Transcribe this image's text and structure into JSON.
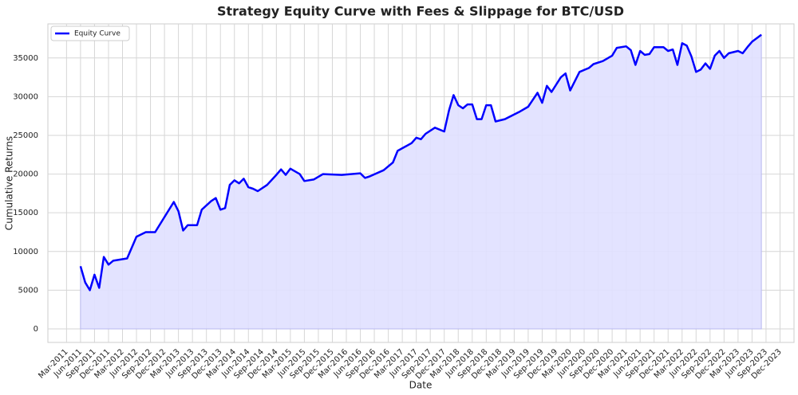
{
  "chart_data": {
    "type": "line",
    "title": "Strategy Equity Curve with Fees & Slippage for BTC/USD",
    "x_label": "Date",
    "y_label": "Cumulative Returns",
    "x": [
      "2011-06",
      "2011-07",
      "2011-08",
      "2011-09",
      "2011-10",
      "2011-11",
      "2011-12",
      "2012-01",
      "2012-04",
      "2012-06",
      "2012-08",
      "2012-10",
      "2013-02",
      "2013-03",
      "2013-04",
      "2013-05",
      "2013-07",
      "2013-08",
      "2013-10",
      "2013-11",
      "2013-12",
      "2014-01",
      "2014-02",
      "2014-03",
      "2014-04",
      "2014-05",
      "2014-06",
      "2014-07",
      "2014-08",
      "2014-10",
      "2014-12",
      "2015-01",
      "2015-02",
      "2015-03",
      "2015-05",
      "2015-06",
      "2015-08",
      "2015-10",
      "2016-02",
      "2016-04",
      "2016-06",
      "2016-07",
      "2016-08",
      "2016-11",
      "2017-01",
      "2017-02",
      "2017-05",
      "2017-06",
      "2017-07",
      "2017-08",
      "2017-10",
      "2017-12",
      "2018-01",
      "2018-02",
      "2018-03",
      "2018-04",
      "2018-05",
      "2018-06",
      "2018-07",
      "2018-08",
      "2018-09",
      "2018-10",
      "2018-11",
      "2019-01",
      "2019-04",
      "2019-06",
      "2019-08",
      "2019-09",
      "2019-10",
      "2019-11",
      "2020-01",
      "2020-02",
      "2020-03",
      "2020-05",
      "2020-07",
      "2020-08",
      "2020-10",
      "2020-12",
      "2021-01",
      "2021-03",
      "2021-04",
      "2021-05",
      "2021-06",
      "2021-07",
      "2021-08",
      "2021-09",
      "2021-11",
      "2021-12",
      "2022-01",
      "2022-02",
      "2022-03",
      "2022-04",
      "2022-05",
      "2022-06",
      "2022-07",
      "2022-08",
      "2022-09",
      "2022-10",
      "2022-11",
      "2022-12",
      "2023-01",
      "2023-03",
      "2023-04",
      "2023-05",
      "2023-06",
      "2023-08"
    ],
    "series": [
      {
        "name": "Equity Curve",
        "color": "#0000ff",
        "fill_color": "#e0e0ff",
        "values": [
          8100,
          6000,
          5000,
          7000,
          5300,
          9300,
          8300,
          8800,
          9100,
          11900,
          12500,
          12500,
          16400,
          15200,
          12700,
          13400,
          13400,
          15400,
          16500,
          16900,
          15400,
          15600,
          18600,
          19200,
          18800,
          19400,
          18300,
          18100,
          17800,
          18600,
          19900,
          20600,
          19900,
          20700,
          20000,
          19100,
          19300,
          20000,
          19900,
          20000,
          20100,
          19500,
          19700,
          20500,
          21500,
          23000,
          24000,
          24700,
          24500,
          25200,
          26000,
          25500,
          28200,
          30200,
          28900,
          28500,
          29000,
          29000,
          27100,
          27100,
          28900,
          28900,
          26800,
          27100,
          28000,
          28700,
          30500,
          29200,
          31400,
          30600,
          32500,
          33000,
          30800,
          33200,
          33700,
          34200,
          34600,
          35300,
          36300,
          36500,
          36000,
          34100,
          35900,
          35400,
          35500,
          36400,
          36400,
          35900,
          36100,
          34100,
          36900,
          36600,
          35200,
          33200,
          33500,
          34300,
          33600,
          35300,
          35900,
          35000,
          35600,
          35900,
          35600,
          36400,
          37100,
          38000
        ]
      }
    ],
    "xlim": [
      "2010-11",
      "2024-03"
    ],
    "xticks": [
      {
        "value": "2011-03",
        "label": "Mar-2011"
      },
      {
        "value": "2011-06",
        "label": "Jun-2011"
      },
      {
        "value": "2011-09",
        "label": "Sep-2011"
      },
      {
        "value": "2011-12",
        "label": "Dec-2011"
      },
      {
        "value": "2012-03",
        "label": "Mar-2012"
      },
      {
        "value": "2012-06",
        "label": "Jun-2012"
      },
      {
        "value": "2012-09",
        "label": "Sep-2012"
      },
      {
        "value": "2012-12",
        "label": "Dec-2012"
      },
      {
        "value": "2013-03",
        "label": "Mar-2013"
      },
      {
        "value": "2013-06",
        "label": "Jun-2013"
      },
      {
        "value": "2013-09",
        "label": "Sep-2013"
      },
      {
        "value": "2013-12",
        "label": "Dec-2013"
      },
      {
        "value": "2014-03",
        "label": "Mar-2014"
      },
      {
        "value": "2014-06",
        "label": "Jun-2014"
      },
      {
        "value": "2014-09",
        "label": "Sep-2014"
      },
      {
        "value": "2014-12",
        "label": "Dec-2014"
      },
      {
        "value": "2015-03",
        "label": "Mar-2015"
      },
      {
        "value": "2015-06",
        "label": "Jun-2015"
      },
      {
        "value": "2015-09",
        "label": "Sep-2015"
      },
      {
        "value": "2015-12",
        "label": "Dec-2015"
      },
      {
        "value": "2016-03",
        "label": "Mar-2016"
      },
      {
        "value": "2016-06",
        "label": "Jun-2016"
      },
      {
        "value": "2016-09",
        "label": "Sep-2016"
      },
      {
        "value": "2016-12",
        "label": "Dec-2016"
      },
      {
        "value": "2017-03",
        "label": "Mar-2017"
      },
      {
        "value": "2017-06",
        "label": "Jun-2017"
      },
      {
        "value": "2017-09",
        "label": "Sep-2017"
      },
      {
        "value": "2017-12",
        "label": "Dec-2017"
      },
      {
        "value": "2018-03",
        "label": "Mar-2018"
      },
      {
        "value": "2018-06",
        "label": "Jun-2018"
      },
      {
        "value": "2018-09",
        "label": "Sep-2018"
      },
      {
        "value": "2018-12",
        "label": "Dec-2018"
      },
      {
        "value": "2019-03",
        "label": "Mar-2019"
      },
      {
        "value": "2019-06",
        "label": "Jun-2019"
      },
      {
        "value": "2019-09",
        "label": "Sep-2019"
      },
      {
        "value": "2019-12",
        "label": "Dec-2019"
      },
      {
        "value": "2020-03",
        "label": "Mar-2020"
      },
      {
        "value": "2020-06",
        "label": "Jun-2020"
      },
      {
        "value": "2020-09",
        "label": "Sep-2020"
      },
      {
        "value": "2020-12",
        "label": "Dec-2020"
      },
      {
        "value": "2021-03",
        "label": "Mar-2021"
      },
      {
        "value": "2021-06",
        "label": "Jun-2021"
      },
      {
        "value": "2021-09",
        "label": "Sep-2021"
      },
      {
        "value": "2021-12",
        "label": "Dec-2021"
      },
      {
        "value": "2022-03",
        "label": "Mar-2022"
      },
      {
        "value": "2022-06",
        "label": "Jun-2022"
      },
      {
        "value": "2022-09",
        "label": "Sep-2022"
      },
      {
        "value": "2022-12",
        "label": "Dec-2022"
      },
      {
        "value": "2023-03",
        "label": "Mar-2023"
      },
      {
        "value": "2023-06",
        "label": "Jun-2023"
      },
      {
        "value": "2023-09",
        "label": "Sep-2023"
      },
      {
        "value": "2023-12",
        "label": "Dec-2023"
      }
    ],
    "ylim": [
      -1750,
      39400
    ],
    "yticks": [
      0,
      5000,
      10000,
      15000,
      20000,
      25000,
      30000,
      35000
    ],
    "grid": true,
    "legend": "upper left"
  }
}
